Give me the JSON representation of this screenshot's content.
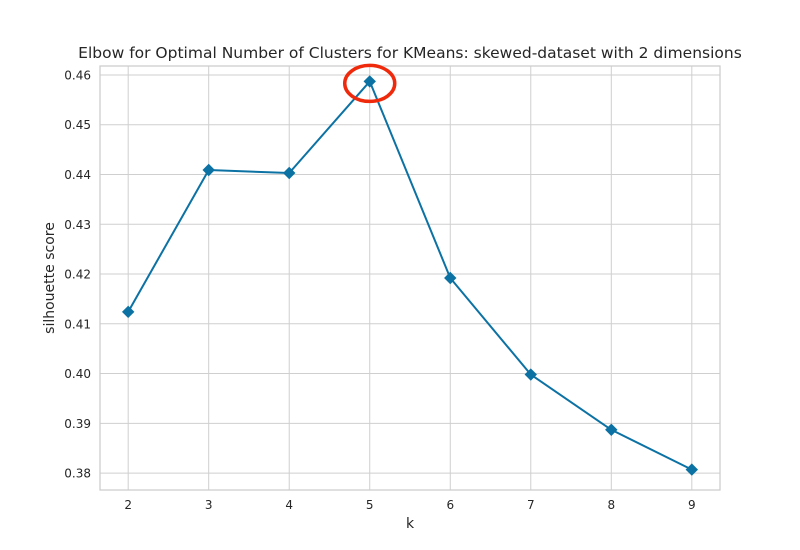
{
  "chart_data": {
    "type": "line",
    "title": "Elbow for Optimal Number of Clusters for KMeans: skewed-dataset with 2 dimensions",
    "xlabel": "k",
    "ylabel": "silhouette score",
    "xlim": [
      1.65,
      9.35
    ],
    "ylim": [
      0.3766,
      0.4618
    ],
    "x_ticks": [
      "2",
      "3",
      "4",
      "5",
      "6",
      "7",
      "8",
      "9"
    ],
    "y_ticks": [
      "0.38",
      "0.39",
      "0.40",
      "0.41",
      "0.42",
      "0.43",
      "0.44",
      "0.45",
      "0.46"
    ],
    "grid": true,
    "series": [
      {
        "x": [
          2,
          3,
          4,
          5,
          6,
          7,
          8,
          9
        ],
        "values": [
          0.4124,
          0.4409,
          0.4403,
          0.4587,
          0.4192,
          0.3998,
          0.3887,
          0.3807
        ],
        "color": "#0c72a4",
        "marker": "diamond"
      }
    ],
    "highlight": {
      "x": 5,
      "y": 0.4587,
      "shape": "circle",
      "color": "#ef2a0c"
    },
    "colors": {
      "grid": "#cfcfcf",
      "axes_edge": "#cccccc",
      "background": "#ffffff"
    }
  }
}
